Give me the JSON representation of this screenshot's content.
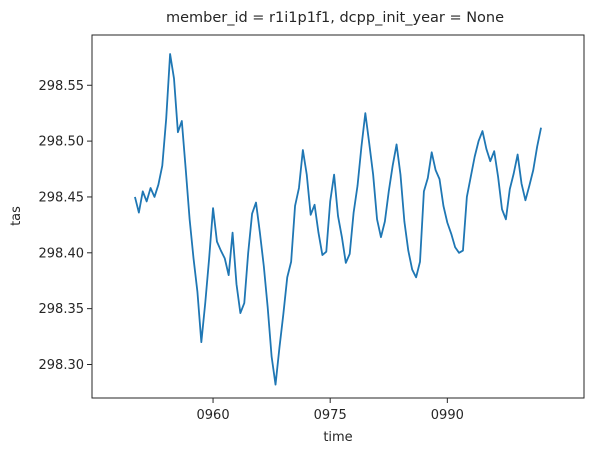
{
  "chart_data": {
    "type": "line",
    "title": "member_id = r1i1p1f1, dcpp_init_year = None",
    "xlabel": "time",
    "ylabel": "tas",
    "xlim": [
      944.5,
      1007.5
    ],
    "ylim": [
      298.27,
      298.595
    ],
    "xticks": [
      960,
      975,
      990
    ],
    "xtick_labels": [
      "0960",
      "0975",
      "0990"
    ],
    "yticks": [
      298.3,
      298.35,
      298.4,
      298.45,
      298.5,
      298.55
    ],
    "ytick_labels": [
      "298.30",
      "298.35",
      "298.40",
      "298.45",
      "298.50",
      "298.55"
    ],
    "grid": false,
    "legend": null,
    "series": [
      {
        "color": "#1f77b4",
        "x": [
          950.0,
          950.5,
          951.0,
          951.5,
          952.0,
          952.5,
          953.0,
          953.5,
          954.0,
          954.5,
          955.0,
          955.5,
          956.0,
          956.5,
          957.0,
          957.5,
          958.0,
          958.5,
          959.0,
          959.5,
          960.0,
          960.5,
          961.0,
          961.5,
          962.0,
          962.5,
          963.0,
          963.5,
          964.0,
          964.5,
          965.0,
          965.5,
          966.0,
          966.5,
          967.0,
          967.5,
          968.0,
          968.5,
          969.0,
          969.5,
          970.0,
          970.5,
          971.0,
          971.5,
          972.0,
          972.5,
          973.0,
          973.5,
          974.0,
          974.5,
          975.0,
          975.5,
          976.0,
          976.5,
          977.0,
          977.5,
          978.0,
          978.5,
          979.0,
          979.5,
          980.0,
          980.5,
          981.0,
          981.5,
          982.0,
          982.5,
          983.0,
          983.5,
          984.0,
          984.5,
          985.0,
          985.5,
          986.0,
          986.5,
          987.0,
          987.5,
          988.0,
          988.5,
          989.0,
          989.5,
          990.0,
          990.5,
          991.0,
          991.5,
          992.0,
          992.5,
          993.0,
          993.5,
          994.0,
          994.5,
          995.0,
          995.5,
          996.0,
          996.5,
          997.0,
          997.5,
          998.0,
          998.5,
          999.0,
          999.5,
          1000.0,
          1000.5,
          1001.0,
          1001.5,
          1002.0
        ],
        "y": [
          298.45,
          298.436,
          298.455,
          298.446,
          298.458,
          298.45,
          298.461,
          298.478,
          298.52,
          298.578,
          298.556,
          298.508,
          298.518,
          298.475,
          298.43,
          298.395,
          298.365,
          298.32,
          298.355,
          298.395,
          298.44,
          298.41,
          298.402,
          298.395,
          298.38,
          298.418,
          298.372,
          298.346,
          298.355,
          298.4,
          298.435,
          298.445,
          298.418,
          298.388,
          298.351,
          298.307,
          298.282,
          298.315,
          298.345,
          298.378,
          298.392,
          298.442,
          298.458,
          298.492,
          298.47,
          298.434,
          298.443,
          298.418,
          298.398,
          298.401,
          298.446,
          298.47,
          298.433,
          298.414,
          298.391,
          298.399,
          298.436,
          298.46,
          298.495,
          298.525,
          298.498,
          298.47,
          298.43,
          298.414,
          298.428,
          298.455,
          298.478,
          298.497,
          298.47,
          298.428,
          298.402,
          298.385,
          298.378,
          298.392,
          298.455,
          298.467,
          298.49,
          298.474,
          298.466,
          298.442,
          298.427,
          298.417,
          298.405,
          298.4,
          298.402,
          298.45,
          298.468,
          298.486,
          298.5,
          298.509,
          298.493,
          298.482,
          298.491,
          298.468,
          298.439,
          298.43,
          298.457,
          298.471,
          298.488,
          298.462,
          298.447,
          298.46,
          298.474,
          298.495,
          298.512
        ]
      }
    ]
  }
}
